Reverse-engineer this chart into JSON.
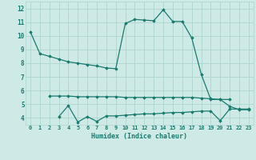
{
  "line1_x": [
    0,
    1,
    2,
    3,
    4,
    5,
    6,
    7,
    8,
    9,
    10,
    11,
    12,
    13,
    14,
    15,
    16,
    17,
    18,
    19,
    20,
    21,
    22,
    23
  ],
  "line1_y": [
    10.3,
    8.7,
    8.5,
    8.3,
    8.1,
    8.0,
    7.9,
    7.8,
    7.65,
    7.6,
    10.9,
    11.2,
    11.15,
    11.1,
    11.9,
    11.05,
    11.05,
    9.85,
    7.2,
    5.35,
    5.35,
    4.85,
    4.6,
    4.6
  ],
  "line2_x": [
    2,
    3,
    4,
    5,
    6,
    7,
    8,
    9,
    10,
    11,
    12,
    13,
    14,
    15,
    16,
    17,
    18,
    19,
    20,
    21
  ],
  "line2_y": [
    5.6,
    5.6,
    5.6,
    5.55,
    5.55,
    5.55,
    5.55,
    5.55,
    5.5,
    5.5,
    5.5,
    5.5,
    5.5,
    5.5,
    5.5,
    5.5,
    5.45,
    5.4,
    5.35,
    5.35
  ],
  "line3_x": [
    3,
    4,
    5,
    6,
    7,
    8,
    9,
    10,
    11,
    12,
    13,
    14,
    15,
    16,
    17,
    18,
    19,
    20,
    21,
    22,
    23
  ],
  "line3_y": [
    4.1,
    4.9,
    3.7,
    4.1,
    3.75,
    4.15,
    4.15,
    4.2,
    4.25,
    4.3,
    4.3,
    4.35,
    4.4,
    4.4,
    4.45,
    4.5,
    4.5,
    3.8,
    4.65,
    4.65,
    4.65
  ],
  "color": "#1a7a6e",
  "bg_color": "#cdeae7",
  "grid_color": "#aed4cf",
  "xlabel": "Humidex (Indice chaleur)",
  "ylim": [
    3.5,
    12.5
  ],
  "xlim": [
    -0.5,
    23.5
  ],
  "yticks": [
    4,
    5,
    6,
    7,
    8,
    9,
    10,
    11,
    12
  ],
  "xticks": [
    0,
    1,
    2,
    3,
    4,
    5,
    6,
    7,
    8,
    9,
    10,
    11,
    12,
    13,
    14,
    15,
    16,
    17,
    18,
    19,
    20,
    21,
    22,
    23
  ],
  "xtick_labels": [
    "0",
    "1",
    "2",
    "3",
    "4",
    "5",
    "6",
    "7",
    "8",
    "9",
    "10",
    "11",
    "12",
    "13",
    "14",
    "15",
    "16",
    "17",
    "18",
    "19",
    "20",
    "21",
    "22",
    "23"
  ],
  "marker": "D",
  "markersize": 1.8,
  "linewidth": 0.9,
  "font_size_x": 5.0,
  "font_size_y": 5.5,
  "font_size_xlabel": 6.0
}
